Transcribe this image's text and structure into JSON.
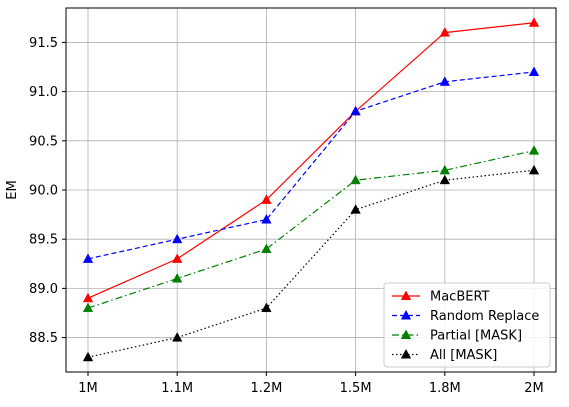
{
  "chart_data": {
    "type": "line",
    "title": "",
    "xlabel": "",
    "ylabel": "EM",
    "categories": [
      "1M",
      "1.1M",
      "1.2M",
      "1.5M",
      "1.8M",
      "2M"
    ],
    "y_ticks": [
      "88.5",
      "89.0",
      "89.5",
      "90.0",
      "90.5",
      "91.0",
      "91.5"
    ],
    "ylim": [
      88.15,
      91.85
    ],
    "grid": true,
    "legend_position": "bottom-right",
    "series": [
      {
        "name": "MacBERT",
        "values": [
          88.9,
          89.3,
          89.9,
          90.8,
          91.6,
          91.7
        ],
        "color": "#ff0000",
        "line_style": "solid",
        "marker": "triangle-up"
      },
      {
        "name": "Random Replace",
        "values": [
          89.3,
          89.5,
          89.7,
          90.8,
          91.1,
          91.2
        ],
        "color": "#0000ff",
        "line_style": "dashed",
        "marker": "triangle-up"
      },
      {
        "name": "Partial [MASK]",
        "values": [
          88.8,
          89.1,
          89.4,
          90.1,
          90.2,
          90.4
        ],
        "color": "#007f00",
        "line_style": "dashdot",
        "marker": "triangle-up"
      },
      {
        "name": "All [MASK]",
        "values": [
          88.3,
          88.5,
          88.8,
          89.8,
          90.1,
          90.2
        ],
        "color": "#000000",
        "line_style": "dotted",
        "marker": "triangle-up"
      }
    ]
  }
}
